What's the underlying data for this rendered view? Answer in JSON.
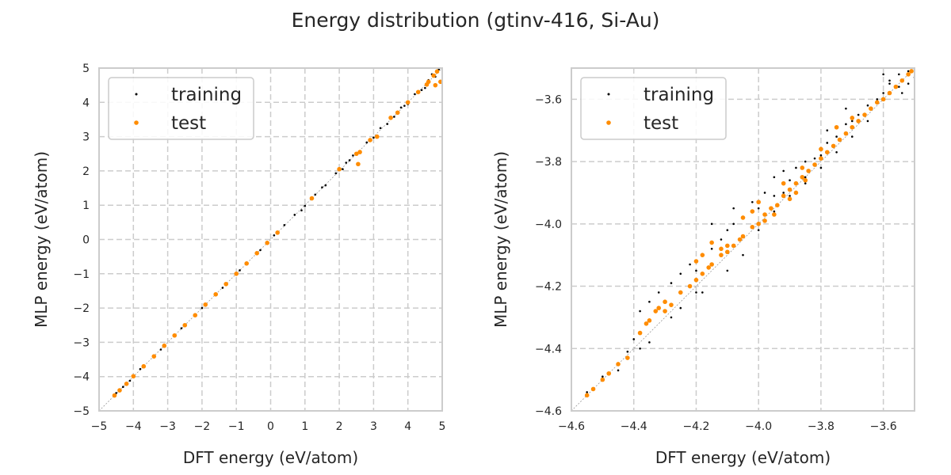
{
  "figure": {
    "title": "Energy distribution (gtinv-416, Si-Au)"
  },
  "chart_data": [
    {
      "type": "scatter",
      "xlabel": "DFT energy (eV/atom)",
      "ylabel": "MLP energy (eV/atom)",
      "xlim": [
        -5,
        5
      ],
      "ylim": [
        -5,
        5
      ],
      "xticks": [
        "−5",
        "−4",
        "−3",
        "−2",
        "−1",
        "0",
        "1",
        "2",
        "3",
        "4",
        "5"
      ],
      "yticks": [
        "−5",
        "−4",
        "−3",
        "−2",
        "−1",
        "0",
        "1",
        "2",
        "3",
        "4",
        "5"
      ],
      "grid": true,
      "grid_style": "dashed",
      "diagonal_reference": true,
      "legend_position": "top-left",
      "series": [
        {
          "name": "training",
          "color": "#000000",
          "marker": "dot-small",
          "points": [
            [
              -4.5,
              -4.48
            ],
            [
              -4.3,
              -4.3
            ],
            [
              -4.1,
              -4.12
            ],
            [
              -3.8,
              -3.78
            ],
            [
              -3.2,
              -3.21
            ],
            [
              -2.6,
              -2.59
            ],
            [
              -2.0,
              -2.0
            ],
            [
              -1.4,
              -1.41
            ],
            [
              -0.9,
              -0.9
            ],
            [
              -0.3,
              -0.31
            ],
            [
              0.1,
              0.12
            ],
            [
              0.4,
              0.42
            ],
            [
              0.7,
              0.72
            ],
            [
              1.0,
              0.98
            ],
            [
              1.3,
              1.31
            ],
            [
              1.6,
              1.58
            ],
            [
              1.9,
              1.93
            ],
            [
              2.1,
              2.05
            ],
            [
              2.2,
              2.24
            ],
            [
              2.4,
              2.45
            ],
            [
              2.6,
              2.55
            ],
            [
              2.8,
              2.83
            ],
            [
              3.0,
              2.97
            ],
            [
              3.2,
              3.25
            ],
            [
              3.4,
              3.37
            ],
            [
              3.6,
              3.58
            ],
            [
              3.8,
              3.85
            ],
            [
              4.0,
              3.95
            ],
            [
              4.2,
              4.24
            ],
            [
              4.4,
              4.36
            ],
            [
              4.6,
              4.65
            ],
            [
              4.8,
              4.75
            ],
            [
              4.9,
              4.96
            ],
            [
              4.7,
              4.82
            ],
            [
              4.5,
              4.42
            ],
            [
              3.9,
              3.9
            ],
            [
              2.9,
              2.9
            ],
            [
              1.5,
              1.52
            ],
            [
              0.9,
              0.85
            ],
            [
              2.3,
              2.31
            ]
          ]
        },
        {
          "name": "test",
          "color": "#ff8c00",
          "marker": "dot-large",
          "points": [
            [
              -4.55,
              -4.55
            ],
            [
              -4.4,
              -4.4
            ],
            [
              -4.2,
              -4.21
            ],
            [
              -4.0,
              -3.99
            ],
            [
              -3.7,
              -3.7
            ],
            [
              -3.4,
              -3.41
            ],
            [
              -3.1,
              -3.1
            ],
            [
              -2.8,
              -2.8
            ],
            [
              -2.5,
              -2.5
            ],
            [
              -2.2,
              -2.21
            ],
            [
              -1.9,
              -1.9
            ],
            [
              -1.6,
              -1.6
            ],
            [
              -1.3,
              -1.3
            ],
            [
              -1.0,
              -1.0
            ],
            [
              -0.7,
              -0.7
            ],
            [
              -0.4,
              -0.4
            ],
            [
              -0.1,
              -0.1
            ],
            [
              0.2,
              0.2
            ],
            [
              1.2,
              1.2
            ],
            [
              2.0,
              2.05
            ],
            [
              2.5,
              2.5
            ],
            [
              2.55,
              2.2
            ],
            [
              2.6,
              2.55
            ],
            [
              2.9,
              2.9
            ],
            [
              3.1,
              3.0
            ],
            [
              3.5,
              3.55
            ],
            [
              3.7,
              3.7
            ],
            [
              4.0,
              4.0
            ],
            [
              4.3,
              4.3
            ],
            [
              4.6,
              4.6
            ],
            [
              4.75,
              4.78
            ],
            [
              4.85,
              4.9
            ],
            [
              4.95,
              4.6
            ],
            [
              4.8,
              4.5
            ],
            [
              4.55,
              4.52
            ]
          ]
        }
      ]
    },
    {
      "type": "scatter",
      "xlabel": "DFT energy (eV/atom)",
      "ylabel": "MLP energy (eV/atom)",
      "xlim": [
        -4.6,
        -3.5
      ],
      "ylim": [
        -4.6,
        -3.5
      ],
      "xtick_values": [
        -4.6,
        -4.4,
        -4.2,
        -4.0,
        -3.8,
        -3.6
      ],
      "xticks": [
        "−4.6",
        "−4.4",
        "−4.2",
        "−4.0",
        "−3.8",
        "−3.6"
      ],
      "ytick_values": [
        -4.6,
        -4.4,
        -4.2,
        -4.0,
        -3.8,
        -3.6
      ],
      "yticks": [
        "−4.6",
        "−4.4",
        "−4.2",
        "−4.0",
        "−3.8",
        "−3.6"
      ],
      "grid": true,
      "grid_style": "dashed",
      "diagonal_reference": true,
      "legend_position": "top-left",
      "series": [
        {
          "name": "training",
          "color": "#000000",
          "marker": "dot-small",
          "points": [
            [
              -4.55,
              -4.54
            ],
            [
              -4.5,
              -4.49
            ],
            [
              -4.45,
              -4.45
            ],
            [
              -4.42,
              -4.41
            ],
            [
              -4.4,
              -4.37
            ],
            [
              -4.38,
              -4.28
            ],
            [
              -4.35,
              -4.25
            ],
            [
              -4.32,
              -4.22
            ],
            [
              -4.28,
              -4.19
            ],
            [
              -4.25,
              -4.16
            ],
            [
              -4.22,
              -4.13
            ],
            [
              -4.2,
              -4.15
            ],
            [
              -4.18,
              -4.1
            ],
            [
              -4.15,
              -4.08
            ],
            [
              -4.12,
              -4.05
            ],
            [
              -4.1,
              -4.02
            ],
            [
              -4.08,
              -4.0
            ],
            [
              -4.05,
              -3.98
            ],
            [
              -4.0,
              -3.95
            ],
            [
              -3.95,
              -3.91
            ],
            [
              -3.92,
              -3.9
            ],
            [
              -3.9,
              -3.86
            ],
            [
              -3.88,
              -3.82
            ],
            [
              -3.85,
              -3.8
            ],
            [
              -3.82,
              -3.79
            ],
            [
              -3.8,
              -3.78
            ],
            [
              -3.78,
              -3.74
            ],
            [
              -3.75,
              -3.72
            ],
            [
              -3.72,
              -3.68
            ],
            [
              -3.7,
              -3.67
            ],
            [
              -3.68,
              -3.65
            ],
            [
              -3.65,
              -3.62
            ],
            [
              -3.62,
              -3.6
            ],
            [
              -3.6,
              -3.58
            ],
            [
              -3.58,
              -3.55
            ],
            [
              -3.55,
              -3.52
            ],
            [
              -3.52,
              -3.51
            ],
            [
              -3.54,
              -3.58
            ],
            [
              -3.5,
              -3.53
            ],
            [
              -3.52,
              -3.55
            ],
            [
              -4.3,
              -4.25
            ],
            [
              -4.28,
              -4.3
            ],
            [
              -4.2,
              -4.22
            ],
            [
              -4.1,
              -4.15
            ],
            [
              -4.05,
              -4.1
            ],
            [
              -4.0,
              -4.02
            ],
            [
              -3.95,
              -3.96
            ],
            [
              -3.9,
              -3.91
            ],
            [
              -3.85,
              -3.87
            ],
            [
              -3.8,
              -3.82
            ],
            [
              -3.75,
              -3.77
            ],
            [
              -3.7,
              -3.72
            ],
            [
              -3.65,
              -3.67
            ],
            [
              -4.15,
              -4.0
            ],
            [
              -4.08,
              -3.95
            ],
            [
              -4.02,
              -3.93
            ],
            [
              -3.98,
              -3.9
            ],
            [
              -3.95,
              -3.85
            ],
            [
              -3.92,
              -3.83
            ],
            [
              -3.78,
              -3.7
            ],
            [
              -3.72,
              -3.63
            ],
            [
              -3.6,
              -3.52
            ],
            [
              -3.58,
              -3.54
            ],
            [
              -3.55,
              -3.56
            ],
            [
              -3.85,
              -3.85
            ],
            [
              -4.35,
              -4.38
            ],
            [
              -4.38,
              -4.4
            ],
            [
              -4.45,
              -4.47
            ],
            [
              -4.25,
              -4.27
            ],
            [
              -4.18,
              -4.22
            ]
          ]
        },
        {
          "name": "test",
          "color": "#ff8c00",
          "marker": "dot-large",
          "points": [
            [
              -4.55,
              -4.55
            ],
            [
              -4.53,
              -4.53
            ],
            [
              -4.5,
              -4.5
            ],
            [
              -4.48,
              -4.48
            ],
            [
              -4.45,
              -4.45
            ],
            [
              -4.42,
              -4.43
            ],
            [
              -4.38,
              -4.35
            ],
            [
              -4.36,
              -4.32
            ],
            [
              -4.35,
              -4.31
            ],
            [
              -4.33,
              -4.28
            ],
            [
              -4.3,
              -4.28
            ],
            [
              -4.28,
              -4.26
            ],
            [
              -4.25,
              -4.22
            ],
            [
              -4.22,
              -4.2
            ],
            [
              -4.2,
              -4.18
            ],
            [
              -4.18,
              -4.16
            ],
            [
              -4.16,
              -4.14
            ],
            [
              -4.15,
              -4.13
            ],
            [
              -4.12,
              -4.1
            ],
            [
              -4.1,
              -4.09
            ],
            [
              -4.08,
              -4.07
            ],
            [
              -4.06,
              -4.05
            ],
            [
              -4.05,
              -4.04
            ],
            [
              -4.02,
              -4.01
            ],
            [
              -4.0,
              -4.0
            ],
            [
              -3.98,
              -3.97
            ],
            [
              -3.96,
              -3.95
            ],
            [
              -3.94,
              -3.94
            ],
            [
              -3.92,
              -3.91
            ],
            [
              -3.9,
              -3.89
            ],
            [
              -3.88,
              -3.87
            ],
            [
              -3.86,
              -3.85
            ],
            [
              -3.84,
              -3.83
            ],
            [
              -3.82,
              -3.81
            ],
            [
              -3.8,
              -3.79
            ],
            [
              -3.78,
              -3.77
            ],
            [
              -3.76,
              -3.75
            ],
            [
              -3.74,
              -3.73
            ],
            [
              -3.72,
              -3.71
            ],
            [
              -3.7,
              -3.69
            ],
            [
              -3.68,
              -3.67
            ],
            [
              -3.66,
              -3.65
            ],
            [
              -3.64,
              -3.63
            ],
            [
              -3.62,
              -3.61
            ],
            [
              -3.6,
              -3.6
            ],
            [
              -3.58,
              -3.58
            ],
            [
              -3.56,
              -3.56
            ],
            [
              -3.54,
              -3.54
            ],
            [
              -3.52,
              -3.52
            ],
            [
              -3.51,
              -3.51
            ],
            [
              -4.2,
              -4.12
            ],
            [
              -4.18,
              -4.1
            ],
            [
              -4.15,
              -4.06
            ],
            [
              -4.12,
              -4.08
            ],
            [
              -4.1,
              -4.07
            ],
            [
              -4.05,
              -3.98
            ],
            [
              -4.02,
              -3.96
            ],
            [
              -4.0,
              -3.93
            ],
            [
              -3.92,
              -3.87
            ],
            [
              -3.86,
              -3.82
            ],
            [
              -3.8,
              -3.76
            ],
            [
              -3.75,
              -3.69
            ],
            [
              -3.7,
              -3.66
            ],
            [
              -4.3,
              -4.25
            ],
            [
              -4.32,
              -4.27
            ],
            [
              -3.98,
              -3.99
            ],
            [
              -3.95,
              -3.97
            ],
            [
              -3.9,
              -3.92
            ],
            [
              -3.85,
              -3.86
            ],
            [
              -3.88,
              -3.9
            ]
          ]
        }
      ]
    }
  ]
}
